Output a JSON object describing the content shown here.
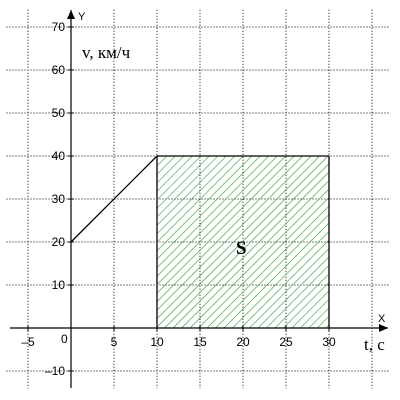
{
  "chart_data": {
    "type": "line",
    "x_axis_name": "X",
    "y_axis_name": "Y",
    "xlabel": "t, c",
    "ylabel": "v, км/ч",
    "x_ticks": [
      -5,
      0,
      5,
      10,
      15,
      20,
      25,
      30
    ],
    "y_ticks": [
      -10,
      10,
      20,
      30,
      40,
      50,
      60,
      70
    ],
    "origin_label": "0",
    "xlim": [
      -7.5,
      37
    ],
    "ylim": [
      -14,
      74
    ],
    "grid": true,
    "series": [
      {
        "x": [
          0,
          10,
          30
        ],
        "y": [
          20,
          40,
          40
        ]
      }
    ],
    "shaded_area": {
      "x_from": 10,
      "x_to": 30,
      "y_from": 0,
      "y_to": 40,
      "pattern": "hatched",
      "label": "S"
    }
  },
  "colors": {
    "grid": "#000000",
    "hatch": "#2e9a2e",
    "line": "#000000",
    "background": "#ffffff"
  }
}
